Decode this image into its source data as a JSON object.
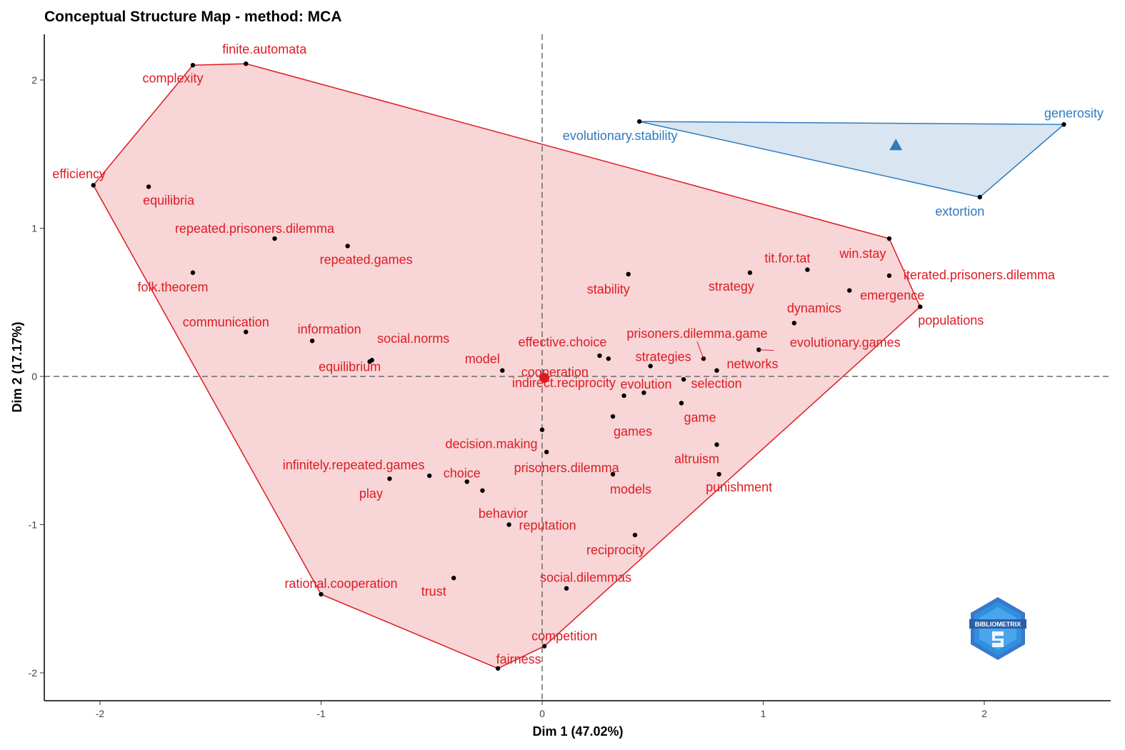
{
  "chart_data": {
    "type": "scatter",
    "title": "Conceptual Structure Map - method: MCA",
    "xlabel": "Dim 1 (47.02%)",
    "ylabel": "Dim 2 (17.17%)",
    "xlim": [
      -2.25,
      2.57
    ],
    "ylim": [
      -2.17,
      2.3
    ],
    "xticks": [
      -2,
      -1,
      0,
      1,
      2
    ],
    "yticks": [
      -2,
      -1,
      0,
      1,
      2
    ],
    "xtick_labels": [
      "-2",
      "-1",
      "0",
      "1",
      "2"
    ],
    "ytick_labels": [
      "-2",
      "-1",
      "0",
      "1",
      "2"
    ],
    "reference_lines": {
      "x": 0,
      "y": 0,
      "style": "dashed"
    },
    "grid": false,
    "logo_text": "BIBLIOMETRIX",
    "clusters": [
      {
        "id": 1,
        "color": "#dd1c24",
        "fill": "#f7d0d2",
        "centroid": [
          0.01,
          -0.01
        ],
        "centroid_marker": "circle",
        "points": [
          {
            "label": "finite.automata",
            "x": -1.34,
            "y": 2.11
          },
          {
            "label": "complexity",
            "x": -1.58,
            "y": 2.1
          },
          {
            "label": "efficiency",
            "x": -2.03,
            "y": 1.29
          },
          {
            "label": "equilibria",
            "x": -1.78,
            "y": 1.28
          },
          {
            "label": "repeated.prisoners.dilemma",
            "x": -1.21,
            "y": 0.93
          },
          {
            "label": "repeated.games",
            "x": -0.88,
            "y": 0.88
          },
          {
            "label": "folk.theorem",
            "x": -1.58,
            "y": 0.7
          },
          {
            "label": "communication",
            "x": -1.34,
            "y": 0.3
          },
          {
            "label": "information",
            "x": -1.04,
            "y": 0.24
          },
          {
            "label": "social.norms",
            "x": -0.77,
            "y": 0.11
          },
          {
            "label": "equilibrium",
            "x": -0.78,
            "y": 0.1
          },
          {
            "label": "model",
            "x": -0.18,
            "y": 0.04
          },
          {
            "label": "effective.choice",
            "x": 0.26,
            "y": 0.14
          },
          {
            "label": "cooperation",
            "x": 0.3,
            "y": 0.12
          },
          {
            "label": "stability",
            "x": 0.39,
            "y": 0.69
          },
          {
            "label": "strategy",
            "x": 0.94,
            "y": 0.7
          },
          {
            "label": "tit.for.tat",
            "x": 1.2,
            "y": 0.72
          },
          {
            "label": "win.stay",
            "x": 1.57,
            "y": 0.93
          },
          {
            "label": "iterated.prisoners.dilemma",
            "x": 1.57,
            "y": 0.68
          },
          {
            "label": "emergence",
            "x": 1.39,
            "y": 0.58
          },
          {
            "label": "populations",
            "x": 1.71,
            "y": 0.47
          },
          {
            "label": "dynamics",
            "x": 1.14,
            "y": 0.36
          },
          {
            "label": "evolutionary.games",
            "x": 0.98,
            "y": 0.18
          },
          {
            "label": "prisoners.dilemma.game",
            "x": 0.73,
            "y": 0.12
          },
          {
            "label": "strategies",
            "x": 0.49,
            "y": 0.07
          },
          {
            "label": "networks",
            "x": 0.79,
            "y": 0.04
          },
          {
            "label": "evolution",
            "x": 0.37,
            "y": -0.13
          },
          {
            "label": "selection",
            "x": 0.64,
            "y": -0.02
          },
          {
            "label": "indirect.reciprocity",
            "x": 0.46,
            "y": -0.11
          },
          {
            "label": "game",
            "x": 0.63,
            "y": -0.18
          },
          {
            "label": "games",
            "x": 0.32,
            "y": -0.27
          },
          {
            "label": "decision.making",
            "x": -0.0,
            "y": -0.36
          },
          {
            "label": "prisoners.dilemma",
            "x": 0.02,
            "y": -0.51
          },
          {
            "label": "altruism",
            "x": 0.79,
            "y": -0.46
          },
          {
            "label": "punishment",
            "x": 0.8,
            "y": -0.66
          },
          {
            "label": "models",
            "x": 0.32,
            "y": -0.66
          },
          {
            "label": "infinitely.repeated.games",
            "x": -0.51,
            "y": -0.67
          },
          {
            "label": "play",
            "x": -0.69,
            "y": -0.69
          },
          {
            "label": "choice",
            "x": -0.34,
            "y": -0.71
          },
          {
            "label": "behavior",
            "x": -0.27,
            "y": -0.77
          },
          {
            "label": "reputation",
            "x": -0.15,
            "y": -1.0
          },
          {
            "label": "reciprocity",
            "x": 0.42,
            "y": -1.07
          },
          {
            "label": "rational.cooperation",
            "x": -1.0,
            "y": -1.47
          },
          {
            "label": "trust",
            "x": -0.4,
            "y": -1.36
          },
          {
            "label": "social.dilemmas",
            "x": 0.11,
            "y": -1.43
          },
          {
            "label": "competition",
            "x": 0.01,
            "y": -1.82
          },
          {
            "label": "fairness",
            "x": -0.2,
            "y": -1.97
          }
        ]
      },
      {
        "id": 2,
        "color": "#2e7bbf",
        "fill": "#d5e3f0",
        "centroid": [
          1.6,
          1.56
        ],
        "centroid_marker": "triangle",
        "points": [
          {
            "label": "evolutionary.stability",
            "x": 0.44,
            "y": 1.72
          },
          {
            "label": "generosity",
            "x": 2.36,
            "y": 1.7
          },
          {
            "label": "extortion",
            "x": 1.98,
            "y": 1.21
          }
        ]
      }
    ]
  }
}
